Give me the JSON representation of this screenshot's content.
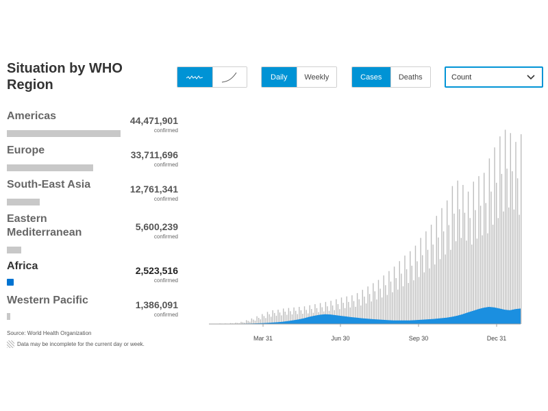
{
  "header": {
    "title": "Situation by WHO Region"
  },
  "controls": {
    "chart_style": [
      "trend",
      "cumulative"
    ],
    "period": {
      "options": [
        "Daily",
        "Weekly"
      ],
      "selected": "Daily"
    },
    "metric": {
      "options": [
        "Cases",
        "Deaths"
      ],
      "selected": "Cases"
    },
    "scale": {
      "value": "Count"
    }
  },
  "regions": [
    {
      "name": "Americas",
      "count": "44,471,901",
      "label": "confirmed",
      "active": false,
      "share": 1.0
    },
    {
      "name": "Europe",
      "count": "33,711,696",
      "label": "confirmed",
      "active": false,
      "share": 0.758
    },
    {
      "name": "South-East Asia",
      "count": "12,761,341",
      "label": "confirmed",
      "active": false,
      "share": 0.287
    },
    {
      "name": "Eastern Mediterranean",
      "count": "5,600,239",
      "label": "confirmed",
      "active": false,
      "share": 0.126
    },
    {
      "name": "Africa",
      "count": "2,523,516",
      "label": "confirmed",
      "active": true,
      "share": 0.057
    },
    {
      "name": "Western Pacific",
      "count": "1,386,091",
      "label": "confirmed",
      "active": false,
      "share": 0.031
    }
  ],
  "footer": {
    "source": "Source: World Health Organization",
    "note": "Data may be incomplete for the current day or week."
  },
  "colors": {
    "accent": "#0093d5",
    "africa": "#0073d1",
    "bar": "#c8c8c8"
  },
  "chart_data": {
    "type": "bar",
    "x_ticks": [
      "Mar 31",
      "Jun 30",
      "Sep 30",
      "Dec 31"
    ],
    "series": [
      {
        "name": "",
        "values": [
          0.3,
          0.3,
          0.5,
          0.5,
          0.8,
          1.2,
          2,
          3.5,
          5,
          7,
          9,
          11,
          12.5,
          13,
          14,
          14.5,
          15,
          15.5,
          16,
          17,
          18,
          19,
          20,
          21,
          22.5,
          24,
          25,
          26,
          28,
          31,
          34,
          37,
          40,
          44,
          48,
          52,
          57,
          62,
          66,
          71,
          78,
          84,
          90,
          98,
          105,
          112,
          125,
          130,
          126,
          120,
          129,
          134,
          137,
          150,
          160,
          170,
          176,
          173,
          165,
          172
        ]
      },
      {
        "name": "",
        "values": [
          0.1,
          0.1,
          0.1,
          0.1,
          0.1,
          0.2,
          0.3,
          0.4,
          0.5,
          0.6,
          0.8,
          1,
          1.3,
          1.6,
          2.1,
          2.7,
          3.4,
          4.2,
          5.2,
          6.5,
          7.5,
          8.4,
          8.8,
          8.6,
          8,
          7.4,
          6.8,
          6.2,
          5.7,
          5.2,
          4.8,
          4.4,
          4.1,
          3.8,
          3.5,
          3.3,
          3.2,
          3.2,
          3.3,
          3.5,
          3.8,
          4.1,
          4.4,
          4.8,
          5.3,
          5.8,
          6.5,
          7.5,
          8.8,
          10.5,
          12,
          13.5,
          14.8,
          15.5,
          15,
          14,
          13,
          12.5,
          13.5,
          14
        ]
      }
    ]
  }
}
